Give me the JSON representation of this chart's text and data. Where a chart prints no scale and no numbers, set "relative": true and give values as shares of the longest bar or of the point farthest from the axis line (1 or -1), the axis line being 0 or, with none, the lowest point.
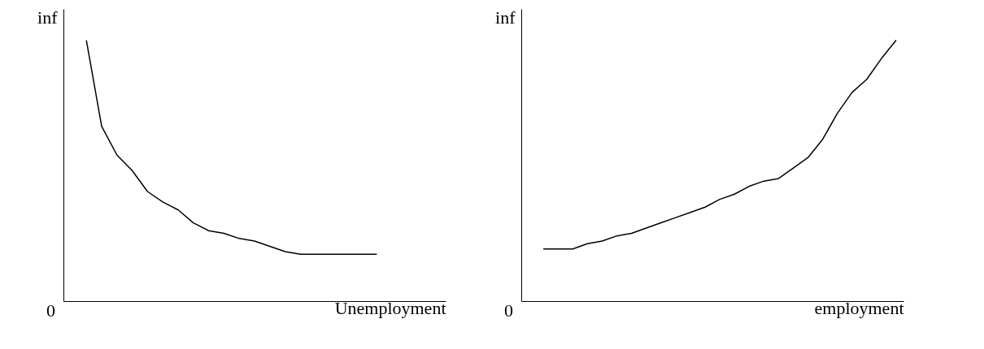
{
  "chart_data": [
    {
      "type": "line",
      "relative": true,
      "xlabel": "Unemployment",
      "ylabel": "inf",
      "annotations": [
        "0"
      ],
      "grid": false,
      "color": "#000000",
      "categories": [
        null,
        null,
        null,
        null,
        null,
        null,
        null,
        null,
        null,
        null,
        null,
        null,
        null,
        null,
        null,
        null,
        null,
        null,
        null,
        null,
        null,
        null,
        null,
        null,
        null
      ],
      "values": [
        null,
        1.0,
        0.67,
        0.56,
        0.5,
        0.42,
        0.38,
        0.35,
        0.3,
        0.27,
        0.26,
        0.24,
        0.23,
        0.21,
        0.19,
        0.18,
        0.18,
        0.18,
        0.18,
        0.18,
        0.18,
        null,
        null,
        null,
        null
      ]
    },
    {
      "type": "line",
      "relative": true,
      "xlabel": "employment",
      "ylabel": "inf",
      "annotations": [
        "0"
      ],
      "grid": false,
      "color": "#000000",
      "categories": [
        null,
        null,
        null,
        null,
        null,
        null,
        null,
        null,
        null,
        null,
        null,
        null,
        null,
        null,
        null,
        null,
        null,
        null,
        null,
        null,
        null,
        null,
        null,
        null,
        null,
        null
      ],
      "values": [
        null,
        0.2,
        0.2,
        0.2,
        0.22,
        0.23,
        0.25,
        0.26,
        0.28,
        0.3,
        0.32,
        0.34,
        0.36,
        0.39,
        0.41,
        0.44,
        0.46,
        0.47,
        0.51,
        0.55,
        0.62,
        0.72,
        0.8,
        0.85,
        0.93,
        1.0
      ]
    }
  ]
}
